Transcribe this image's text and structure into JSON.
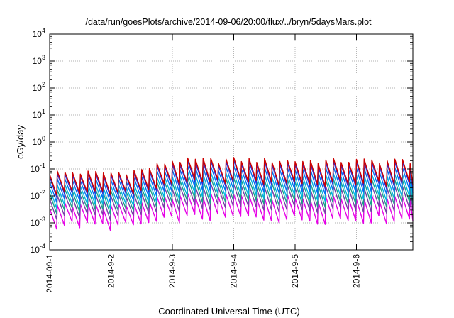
{
  "chart_data": {
    "type": "line",
    "title": "/data/run/goesPlots/archive/2014-09-06/20:00/flux/../bryn/5daysMars.plot",
    "xlabel": "Coordinated Universal Time (UTC)",
    "ylabel": "cGy/day",
    "y_scale": "log",
    "ylim": [
      0.0001,
      10000
    ],
    "xlim": [
      "2014-09-01",
      "2014-09-06 21:00"
    ],
    "grid": true,
    "legend": "none",
    "x_ticks": [
      "2014-09-1",
      "2014-9-2",
      "2014-9-3",
      "2014-9-4",
      "2014-9-5",
      "2014-9-6"
    ],
    "y_ticks": [
      {
        "base": "10",
        "exp": "-4"
      },
      {
        "base": "10",
        "exp": "-3"
      },
      {
        "base": "10",
        "exp": "-2"
      },
      {
        "base": "10",
        "exp": "-1"
      },
      {
        "base": "10",
        "exp": "0"
      },
      {
        "base": "10",
        "exp": "1"
      },
      {
        "base": "10",
        "exp": "2"
      },
      {
        "base": "10",
        "exp": "3"
      },
      {
        "base": "10",
        "exp": "4"
      }
    ],
    "sawtooth_period_hours": 3,
    "envelope": {
      "dates": [
        "2014-09-01",
        "2014-09-02",
        "2014-09-02 12:00",
        "2014-09-03",
        "2014-09-04",
        "2014-09-05",
        "2014-09-06",
        "2014-09-06 21:00"
      ],
      "peak": [
        0.075,
        0.07,
        0.09,
        0.2,
        0.22,
        0.2,
        0.2,
        0.2
      ],
      "trough": [
        0.0005,
        0.0004,
        0.0005,
        0.0008,
        0.0008,
        0.0007,
        0.0007,
        0.0007
      ]
    },
    "series": [
      {
        "color": "#cc0000",
        "level": 1.0
      },
      {
        "color": "#2d2dd6",
        "level": 0.93
      },
      {
        "color": "#0070f0",
        "level": 0.78
      },
      {
        "color": "#00b4e0",
        "level": 0.6
      },
      {
        "color": "#1aa08a",
        "level": 0.45
      },
      {
        "color": "#7a3ca8",
        "level": 0.28
      },
      {
        "color": "#e600e6",
        "level": 0.0
      }
    ]
  }
}
